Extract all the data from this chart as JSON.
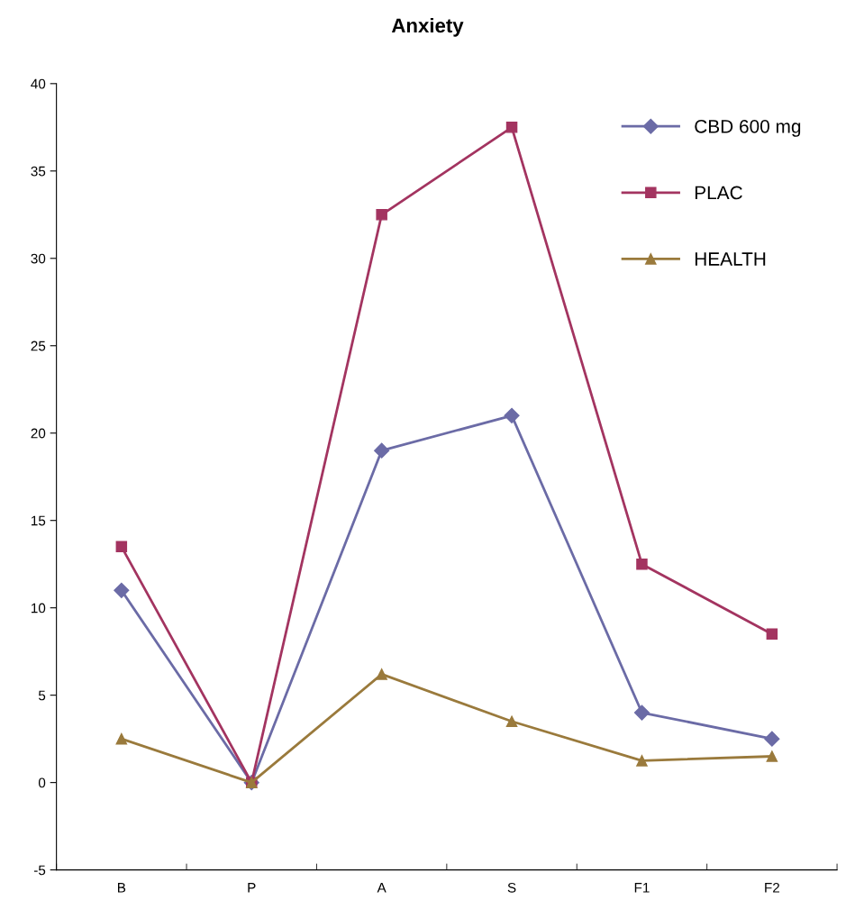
{
  "chart_data": {
    "type": "line",
    "title": "Anxiety",
    "categories": [
      "B",
      "P",
      "A",
      "S",
      "F1",
      "F2"
    ],
    "series": [
      {
        "name": "CBD 600 mg",
        "color": "#6b6ba6",
        "marker": "diamond",
        "values": [
          11,
          0,
          19,
          21,
          4,
          2.5
        ]
      },
      {
        "name": "PLAC",
        "color": "#a33460",
        "marker": "square",
        "values": [
          13.5,
          0,
          32.5,
          37.5,
          12.5,
          8.5
        ]
      },
      {
        "name": "HEALTH",
        "color": "#9a7a3c",
        "marker": "triangle",
        "values": [
          2.5,
          0,
          6.2,
          3.5,
          1.25,
          1.5
        ]
      }
    ],
    "ylim": [
      -5,
      40
    ],
    "yticks": [
      -5,
      0,
      5,
      10,
      15,
      20,
      25,
      30,
      35,
      40
    ],
    "grid": false,
    "legend": "top right",
    "line_style": "solid"
  }
}
